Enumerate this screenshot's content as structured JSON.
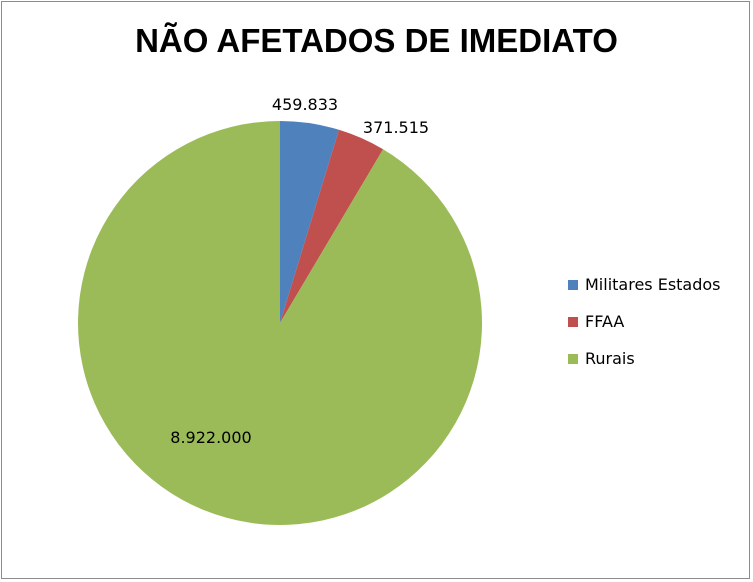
{
  "chart_data": {
    "type": "pie",
    "title": "NÃO AFETADOS DE IMEDIATO",
    "categories": [
      "Militares Estados",
      "FFAA",
      "Rurais"
    ],
    "values": [
      459833,
      371515,
      8922000
    ],
    "value_labels": [
      "459.833",
      "371.515",
      "8.922.000"
    ],
    "colors": [
      "#4f81bd",
      "#c0504d",
      "#9bbb59"
    ],
    "legend_position": "right",
    "start_angle": "12 o'clock",
    "direction": "clockwise"
  }
}
